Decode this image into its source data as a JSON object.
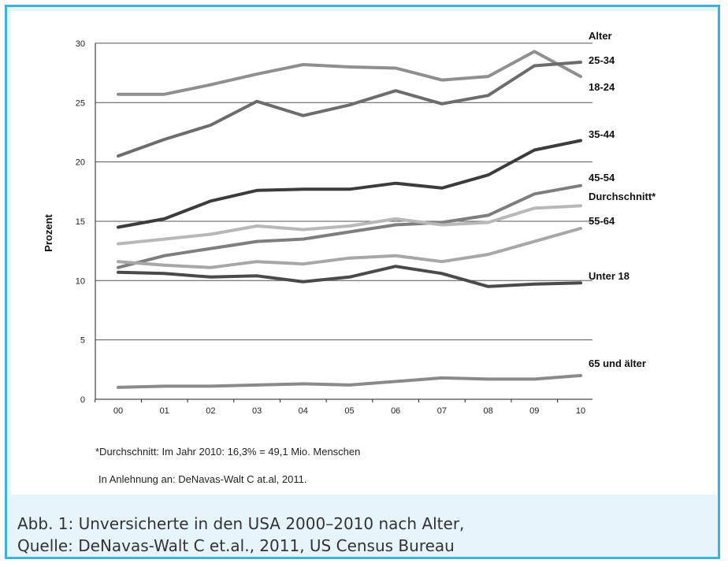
{
  "chart_data": {
    "type": "line",
    "x": [
      "00",
      "01",
      "02",
      "03",
      "04",
      "05",
      "06",
      "07",
      "08",
      "09",
      "10"
    ],
    "ylabel": "Prozent",
    "ylim": [
      0,
      30
    ],
    "yticks": [
      0,
      5,
      10,
      15,
      20,
      25,
      30
    ],
    "grid": true,
    "legend_title": "Alter",
    "series": [
      {
        "name": "25-34",
        "color": "#8f8f8f",
        "values": [
          25.7,
          25.7,
          26.5,
          27.4,
          28.2,
          28.0,
          27.9,
          26.9,
          27.2,
          29.3,
          27.2
        ]
      },
      {
        "name": "18-24",
        "color": "#6c6c6c",
        "values": [
          20.5,
          21.9,
          23.1,
          25.1,
          23.9,
          24.8,
          26.0,
          24.9,
          25.6,
          28.1,
          28.4
        ]
      },
      {
        "name": "35-44",
        "color": "#3c3c3c",
        "values": [
          14.5,
          15.2,
          16.7,
          17.6,
          17.7,
          17.7,
          18.2,
          17.8,
          18.9,
          21.0,
          21.8
        ]
      },
      {
        "name": "45-54",
        "color": "#7e7e7e",
        "values": [
          11.1,
          12.1,
          12.7,
          13.3,
          13.5,
          14.1,
          14.7,
          14.9,
          15.5,
          17.3,
          18.0
        ]
      },
      {
        "name": "Durchschnitt*",
        "color": "#b8b8b8",
        "values": [
          13.1,
          13.5,
          13.9,
          14.6,
          14.3,
          14.6,
          15.2,
          14.7,
          14.9,
          16.1,
          16.3
        ]
      },
      {
        "name": "55-64",
        "color": "#a7a7a7",
        "values": [
          11.6,
          11.3,
          11.1,
          11.6,
          11.4,
          11.9,
          12.1,
          11.6,
          12.2,
          13.3,
          14.4
        ]
      },
      {
        "name": "Unter 18",
        "color": "#4a4a4a",
        "values": [
          10.7,
          10.6,
          10.3,
          10.4,
          9.9,
          10.3,
          11.2,
          10.6,
          9.5,
          9.7,
          9.8
        ]
      },
      {
        "name": "65 und älter",
        "color": "#8a8a8a",
        "values": [
          1.0,
          1.1,
          1.1,
          1.2,
          1.3,
          1.2,
          1.5,
          1.8,
          1.7,
          1.7,
          2.0
        ]
      }
    ]
  },
  "notes": {
    "average": "*Durchschnitt: Im Jahr 2010: 16,3% = 49,1 Mio. Menschen",
    "source": "In Anlehnung an: DeNavas-Walt C at.al, 2011."
  },
  "caption": {
    "line1": "Abb. 1: Unversicherte in den USA 2000–2010 nach Alter,",
    "line2": "Quelle: DeNavas-Walt C et.al., 2011, US Census Bureau"
  }
}
